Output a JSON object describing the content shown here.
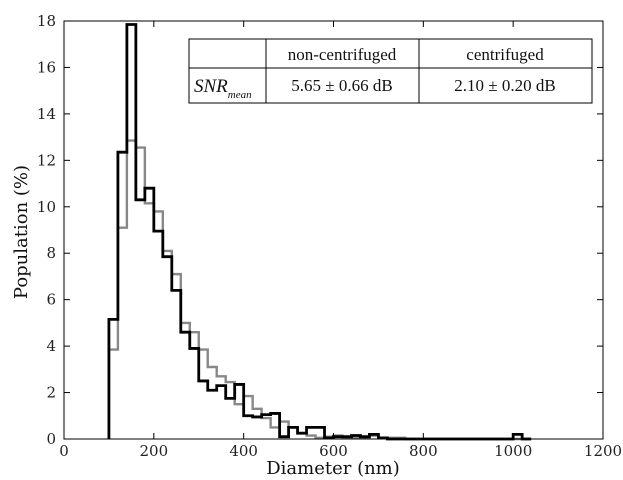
{
  "chart_data": {
    "type": "histogram",
    "xlabel": "Diameter (nm)",
    "ylabel": "Population (%)",
    "xlim": [
      0,
      1200
    ],
    "ylim": [
      0,
      18
    ],
    "xticks": [
      0,
      200,
      400,
      600,
      800,
      1000,
      1200
    ],
    "yticks": [
      0,
      2,
      4,
      6,
      8,
      10,
      12,
      14,
      16,
      18
    ],
    "grid": false,
    "bin_width": 20,
    "series": [
      {
        "color": "#888888",
        "x": [
          100,
          120,
          140,
          160,
          180,
          200,
          220,
          240,
          260,
          280,
          300,
          320,
          340,
          360,
          380,
          400,
          420,
          440,
          460,
          480,
          500,
          520,
          540,
          560,
          580,
          600,
          620,
          640,
          660,
          680,
          700,
          720,
          740,
          760,
          780,
          800,
          820,
          840,
          860,
          880,
          900,
          920,
          940,
          960,
          980,
          1000,
          1020
        ],
        "values": [
          3.85,
          9.1,
          12.85,
          12.55,
          10.15,
          9.8,
          8.1,
          7.1,
          5.0,
          4.6,
          3.85,
          3.1,
          2.7,
          2.45,
          1.5,
          1.85,
          1.3,
          0.9,
          0.5,
          0.75,
          0.5,
          0.25,
          0.15,
          0.05,
          0.1,
          0.15,
          0.05,
          0.05,
          0.05,
          0.15,
          0.05,
          0.05,
          0.05,
          0,
          0,
          0,
          0,
          0,
          0,
          0,
          0,
          0,
          0,
          0,
          0,
          0,
          0
        ]
      },
      {
        "color": "#000000",
        "x": [
          100,
          120,
          140,
          160,
          180,
          200,
          220,
          240,
          260,
          280,
          300,
          320,
          340,
          360,
          380,
          400,
          420,
          440,
          460,
          480,
          500,
          520,
          540,
          560,
          580,
          600,
          620,
          640,
          660,
          680,
          700,
          720,
          740,
          760,
          780,
          800,
          820,
          840,
          860,
          880,
          900,
          920,
          940,
          960,
          980,
          1000,
          1020
        ],
        "values": [
          5.15,
          12.35,
          17.85,
          10.3,
          10.8,
          8.95,
          7.85,
          6.4,
          4.6,
          3.9,
          2.5,
          2.1,
          2.3,
          1.75,
          2.35,
          1.0,
          0.95,
          1.05,
          1.1,
          0.1,
          0.5,
          0.25,
          0.5,
          0.5,
          0.05,
          0.1,
          0.1,
          0.15,
          0.1,
          0.2,
          0.05,
          0,
          0,
          0,
          0,
          0,
          0,
          0,
          0,
          0,
          0,
          0,
          0,
          0,
          0,
          0.2,
          0
        ]
      }
    ],
    "table": {
      "headers": [
        "",
        "non-centrifuged",
        "centrifuged"
      ],
      "row_label_main": "SNR",
      "row_label_sub": "mean",
      "row_values": [
        "5.65 ± 0.66 dB",
        "2.10 ±  0.20 dB"
      ]
    }
  }
}
